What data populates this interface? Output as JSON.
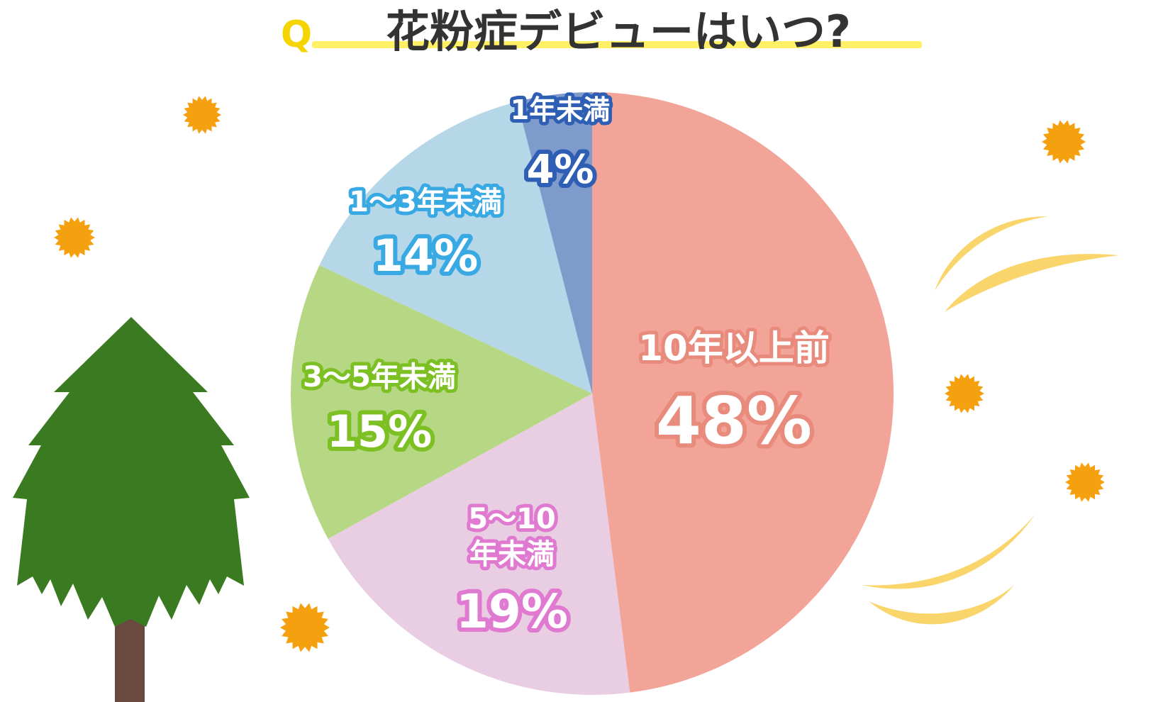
{
  "title": {
    "q_mark": "Q",
    "text": "花粉症デビューはいつ?"
  },
  "chart_data": {
    "type": "pie",
    "title": "花粉症デビューはいつ?",
    "unit": "%",
    "start": "12 o'clock",
    "direction": "clockwise",
    "slices": [
      {
        "label": "10年以上前",
        "value": 48,
        "value_text": "48%",
        "color": "#f2a498",
        "stroke": "#e88a7c"
      },
      {
        "label": "5～10年未満",
        "value": 19,
        "value_text": "19%",
        "color": "#e8cde3",
        "stroke": "#e07ad0"
      },
      {
        "label": "3～5年未満",
        "value": 15,
        "value_text": "15%",
        "color": "#b6d884",
        "stroke": "#7dc024"
      },
      {
        "label": "1～3年未満",
        "value": 14,
        "value_text": "14%",
        "color": "#b5d7e8",
        "stroke": "#39a9e3"
      },
      {
        "label": "1年未満",
        "value": 4,
        "value_text": "4%",
        "color": "#7f9bcb",
        "stroke": "#2e5fb5"
      }
    ]
  },
  "colors": {
    "title_text": "#333333",
    "q_mark": "#f5d400",
    "title_underline": "#fff066",
    "pollen": "#f5a10f",
    "tree_foliage": "#3a7a20",
    "tree_trunk": "#6a4a3f",
    "wind": "#f9d56b"
  },
  "decorations": {
    "icons": [
      "pollen-icon",
      "cedar-tree-icon",
      "wind-icon"
    ]
  }
}
